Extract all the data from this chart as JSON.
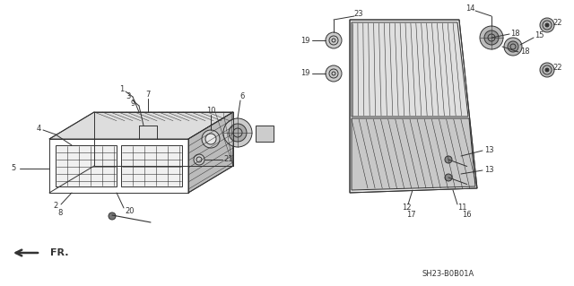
{
  "bg_color": "#ffffff",
  "c": "#333333",
  "ref_code": "SH23-B0B01A",
  "fr_label": "FR."
}
